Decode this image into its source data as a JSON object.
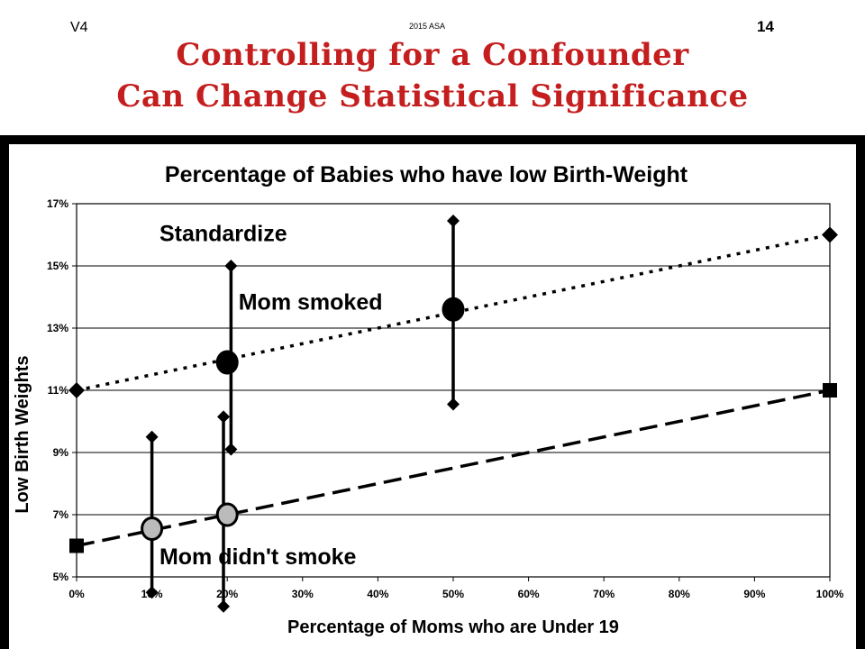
{
  "header": {
    "version": "V4",
    "footer": "2015 ASA",
    "page_number": "14",
    "title_line1": "Controlling for a Confounder",
    "title_line2": "Can Change Statistical Significance"
  },
  "colors": {
    "title": "#c41e1e",
    "frame": "#000000",
    "grid": "#000000"
  },
  "chart_data": {
    "type": "line",
    "title": "Percentage of Babies who have low Birth-Weight",
    "xlabel": "Percentage of Moms who are Under 19",
    "ylabel": "Low Birth Weights",
    "xlim": [
      0,
      100
    ],
    "ylim": [
      5,
      17
    ],
    "x_ticks": [
      0,
      10,
      20,
      30,
      40,
      50,
      60,
      70,
      80,
      90,
      100
    ],
    "y_ticks": [
      5,
      7,
      9,
      11,
      13,
      15,
      17
    ],
    "x_tick_labels": [
      "0%",
      "10%",
      "20%",
      "30%",
      "40%",
      "50%",
      "60%",
      "70%",
      "80%",
      "90%",
      "100%"
    ],
    "y_tick_labels": [
      "5%",
      "7%",
      "9%",
      "11%",
      "13%",
      "15%",
      "17%"
    ],
    "grid": "horizontal",
    "legend": "none",
    "series": [
      {
        "style": "dotted",
        "x": [
          0,
          100
        ],
        "y": [
          11,
          16
        ],
        "marker": "diamond"
      },
      {
        "style": "dashed",
        "x": [
          0,
          100
        ],
        "y": [
          6,
          11
        ],
        "marker": "square"
      }
    ],
    "points": [
      {
        "x": 20,
        "y": 11.9,
        "fill": "#000000"
      },
      {
        "x": 50,
        "y": 13.6,
        "fill": "#000000"
      },
      {
        "x": 10,
        "y": 6.55,
        "fill": "#bbbbbb"
      },
      {
        "x": 20,
        "y": 7.0,
        "fill": "#bbbbbb"
      }
    ],
    "error_bars": [
      {
        "x": 20.5,
        "low": 9.1,
        "high": 15.0
      },
      {
        "x": 50,
        "low": 10.55,
        "high": 16.45
      },
      {
        "x": 10,
        "low": 4.5,
        "high": 9.5
      },
      {
        "x": 19.5,
        "low": 4.05,
        "high": 10.15
      }
    ],
    "annotations": [
      {
        "text": "Standardize",
        "x": 11,
        "y": 15.8
      },
      {
        "text": "Mom smoked",
        "x": 21.5,
        "y": 13.6
      },
      {
        "text": "Mom didn't smoke",
        "x": 11,
        "y": 5.4
      }
    ]
  }
}
